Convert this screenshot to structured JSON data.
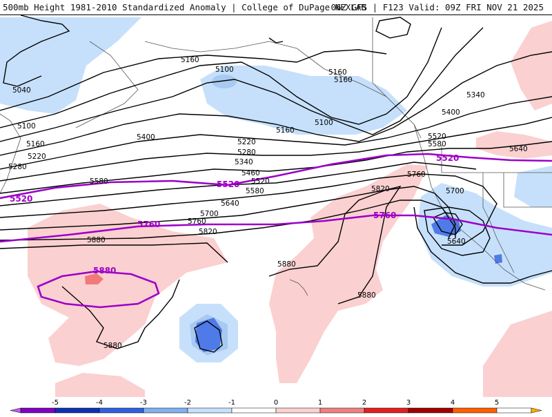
{
  "header": {
    "title": "500mb Height 1981-2010 Standardized Anomaly | College of DuPage NEXLAB",
    "valid": "06Z GFS | F123 Valid: 09Z FRI NOV 21 2025"
  },
  "colors": {
    "contour": "#000000",
    "climo_contour": "#9b00c9",
    "neg1": "#c6e0fb",
    "neg2": "#a8c9f0",
    "neg3": "#4f7be8",
    "pos1": "#fbd0d0",
    "pos2": "#f07a7a",
    "coast": "#555555"
  },
  "height_labels": {
    "l5040": "5040",
    "l5100a": "5100",
    "l5160a": "5160",
    "l5220a": "5220",
    "l5280a": "5280",
    "l5580a": "5580",
    "l5160b": "5160",
    "l5100b": "5100",
    "l5160c": "5160",
    "l5100c": "5100",
    "l5160d": "5160",
    "l5400a": "5400",
    "l5220b": "5220",
    "l5280b": "5280",
    "l5340a": "5340",
    "l5460": "5460",
    "l5520a": "5520",
    "l5580b": "5580",
    "l5640a": "5640",
    "l5700a": "5700",
    "l5760a": "5760",
    "l5820a": "5820",
    "l5880a": "5880",
    "l5880b": "5880",
    "l5880c": "5880",
    "l5880d": "5880",
    "l5820b": "5820",
    "l5760b": "5760",
    "l5340b": "5340",
    "l5400b": "5400",
    "l5520b": "5520",
    "l5580c": "5580",
    "l5640b": "5640",
    "l5700b": "5700",
    "l5640c": "5640"
  },
  "climo_labels": {
    "c5520a": "5520",
    "c5520b": "5520",
    "c5520c": "5520",
    "c5760a": "5760",
    "c5760b": "5760",
    "c5880": "5880"
  },
  "colorbar": {
    "ticks": [
      "-5",
      "-4",
      "-3",
      "-2",
      "-1",
      "0",
      "1",
      "2",
      "3",
      "4",
      "5"
    ],
    "colors": [
      "#c060e0",
      "#8000c0",
      "#1030b0",
      "#3060e0",
      "#80b0f0",
      "#c8e0fa",
      "#ffffff",
      "#fbd0d0",
      "#f08080",
      "#e02020",
      "#a00000",
      "#ff6000",
      "#ffb000"
    ]
  }
}
